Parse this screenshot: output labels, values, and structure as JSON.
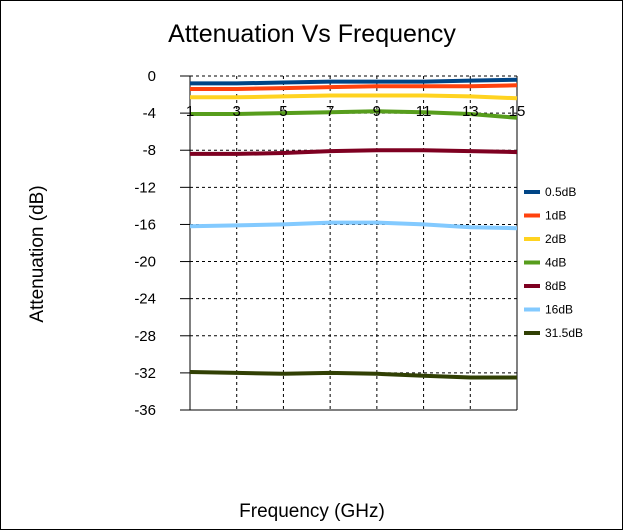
{
  "chart_data": {
    "type": "line",
    "title": "Attenuation Vs Frequency",
    "xlabel": "Frequency (GHz)",
    "ylabel": "Attenuation (dB)",
    "x": [
      1,
      3,
      5,
      7,
      9,
      11,
      13,
      15
    ],
    "x_ticks": [
      "1",
      "3",
      "5",
      "7",
      "9",
      "11",
      "13",
      "15"
    ],
    "xlim": [
      1,
      15
    ],
    "ylim": [
      -36,
      0
    ],
    "y_ticks": [
      "0",
      "-4",
      "-8",
      "-12",
      "-16",
      "-20",
      "-24",
      "-28",
      "-32",
      "-36"
    ],
    "grid": true,
    "legend_position": "right",
    "series": [
      {
        "name": "0.5dB",
        "color": "#004586",
        "values": [
          -0.8,
          -0.8,
          -0.7,
          -0.6,
          -0.6,
          -0.6,
          -0.5,
          -0.4
        ]
      },
      {
        "name": "1dB",
        "color": "#ff420e",
        "values": [
          -1.4,
          -1.4,
          -1.3,
          -1.2,
          -1.1,
          -1.1,
          -1.1,
          -1.0
        ]
      },
      {
        "name": "2dB",
        "color": "#ffd320",
        "values": [
          -2.3,
          -2.3,
          -2.2,
          -2.1,
          -2.1,
          -2.1,
          -2.2,
          -2.4
        ]
      },
      {
        "name": "4dB",
        "color": "#579d1c",
        "values": [
          -4.1,
          -4.1,
          -4.0,
          -3.9,
          -3.8,
          -3.9,
          -4.1,
          -4.5
        ]
      },
      {
        "name": "8dB",
        "color": "#7e0021",
        "values": [
          -8.4,
          -8.4,
          -8.3,
          -8.1,
          -8.0,
          -8.0,
          -8.1,
          -8.2
        ]
      },
      {
        "name": "16dB",
        "color": "#83caff",
        "values": [
          -16.2,
          -16.1,
          -16.0,
          -15.8,
          -15.8,
          -16.0,
          -16.3,
          -16.4
        ]
      },
      {
        "name": "31.5dB",
        "color": "#314004",
        "values": [
          -31.9,
          -32.0,
          -32.1,
          -32.0,
          -32.1,
          -32.3,
          -32.5,
          -32.5
        ]
      }
    ]
  }
}
